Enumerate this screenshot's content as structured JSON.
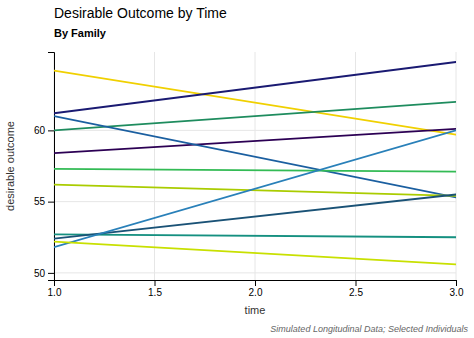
{
  "chart_data": {
    "type": "line",
    "title": "Desirable Outcome by Time",
    "subtitle": "By Family",
    "xlabel": "time",
    "ylabel": "desirable outcome",
    "caption": "Simulated Longitudinal Data; Selected Individuals",
    "x": [
      1.0,
      3.0
    ],
    "series": [
      {
        "color": "#f0d000",
        "values": [
          64.2,
          59.7
        ]
      },
      {
        "color": "#1a1a72",
        "values": [
          61.2,
          64.8
        ]
      },
      {
        "color": "#1e8c5e",
        "values": [
          60.0,
          62.0
        ]
      },
      {
        "color": "#2c0054",
        "values": [
          58.4,
          60.1
        ]
      },
      {
        "color": "#1b5fa0",
        "values": [
          61.0,
          55.3
        ]
      },
      {
        "color": "#33bb55",
        "values": [
          57.3,
          57.1
        ]
      },
      {
        "color": "#aacc00",
        "values": [
          56.2,
          55.4
        ]
      },
      {
        "color": "#159080",
        "values": [
          52.7,
          52.5
        ]
      },
      {
        "color": "#1a5276",
        "values": [
          52.4,
          55.5
        ]
      },
      {
        "color": "#2980b9",
        "values": [
          51.8,
          60.0
        ]
      },
      {
        "color": "#c8e000",
        "values": [
          52.2,
          50.6
        ]
      }
    ],
    "xlim": [
      1.0,
      3.0
    ],
    "ylim": [
      49.5,
      65.5
    ],
    "xticks": [
      {
        "value": 1.0,
        "label": "1.0"
      },
      1.5,
      {
        "value": 2.0,
        "label": "2.0"
      },
      2.5,
      {
        "value": 3.0,
        "label": "3.0"
      }
    ],
    "yticks": [
      50,
      55,
      60
    ],
    "grid": true
  }
}
